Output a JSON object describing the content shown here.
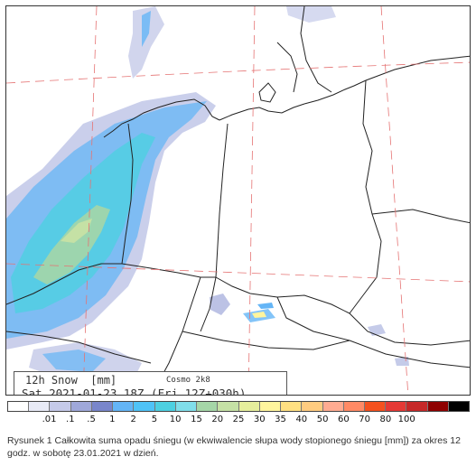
{
  "map": {
    "stamp_line1": "12h Snow  [mm]",
    "stamp_model": "Cosmo 2k8",
    "stamp_line2": "Sat 2021-01-23 18Z (Fri 12Z+030h)"
  },
  "legend": {
    "ticks": [
      ".01",
      ".1",
      ".5",
      "1",
      "2",
      "5",
      "10",
      "15",
      "20",
      "25",
      "30",
      "35",
      "40",
      "50",
      "60",
      "70",
      "80",
      "100"
    ],
    "colors": [
      "#ffffff",
      "#e8eaf6",
      "#c5cae9",
      "#9fa8da",
      "#7986cb",
      "#64b5f6",
      "#4fc3f7",
      "#4dd0e1",
      "#80deea",
      "#a5d6a7",
      "#c5e1a5",
      "#e6ee9c",
      "#fff59d",
      "#ffe082",
      "#ffcc80",
      "#ffab91",
      "#ff8a65",
      "#f4511e",
      "#e53935",
      "#c62828",
      "#8e0000",
      "#000000"
    ]
  },
  "caption": "Rysunek 1 Całkowita suma opadu śniegu (w ekwiwalencie słupa wody stopionego śniegu [mm]) za okres 12 godz. w sobotę 23.01.2021 w dzień."
}
